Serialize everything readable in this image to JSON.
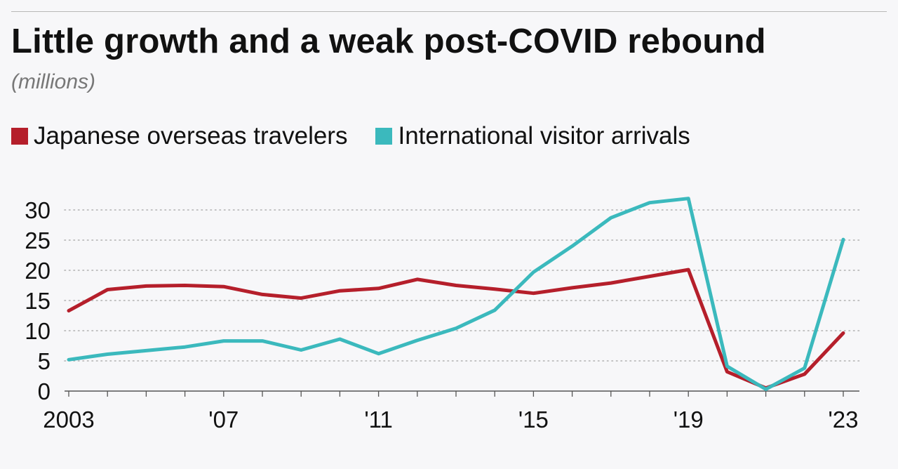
{
  "title": "Little growth and a weak post-COVID rebound",
  "subtitle": "(millions)",
  "colors": {
    "series_1": "#b51f2b",
    "series_2": "#3bb9bd",
    "grid": "#b0b0b0",
    "axis": "#555555"
  },
  "legend": [
    {
      "label": "Japanese overseas travelers",
      "color": "#b51f2b"
    },
    {
      "label": "International visitor arrivals",
      "color": "#3bb9bd"
    }
  ],
  "chart_data": {
    "type": "line",
    "title": "Little growth and a weak post-COVID rebound",
    "subtitle": "(millions)",
    "xlabel": "",
    "ylabel": "",
    "x": [
      2003,
      2004,
      2005,
      2006,
      2007,
      2008,
      2009,
      2010,
      2011,
      2012,
      2013,
      2014,
      2015,
      2016,
      2017,
      2018,
      2019,
      2020,
      2021,
      2022,
      2023
    ],
    "x_ticks": [
      {
        "value": 2003,
        "label": "2003"
      },
      {
        "value": 2007,
        "label": "'07"
      },
      {
        "value": 2011,
        "label": "'11"
      },
      {
        "value": 2015,
        "label": "'15"
      },
      {
        "value": 2019,
        "label": "'19"
      },
      {
        "value": 2023,
        "label": "'23"
      }
    ],
    "y_ticks": [
      0,
      5,
      10,
      15,
      20,
      25,
      30
    ],
    "ylim": [
      0,
      30
    ],
    "xlim": [
      2003,
      2023
    ],
    "grid": "horizontal dotted",
    "legend_position": "top-left",
    "series": [
      {
        "name": "Japanese overseas travelers",
        "color": "#b51f2b",
        "values": [
          13.3,
          16.8,
          17.4,
          17.5,
          17.3,
          16.0,
          15.4,
          16.6,
          17.0,
          18.5,
          17.5,
          16.9,
          16.2,
          17.1,
          17.9,
          19.0,
          20.1,
          3.2,
          0.5,
          2.8,
          9.6
        ]
      },
      {
        "name": "International visitor arrivals",
        "color": "#3bb9bd",
        "values": [
          5.2,
          6.1,
          6.7,
          7.3,
          8.3,
          8.3,
          6.8,
          8.6,
          6.2,
          8.4,
          10.4,
          13.4,
          19.7,
          24.0,
          28.7,
          31.2,
          31.9,
          4.1,
          0.3,
          3.8,
          25.1
        ]
      }
    ]
  }
}
